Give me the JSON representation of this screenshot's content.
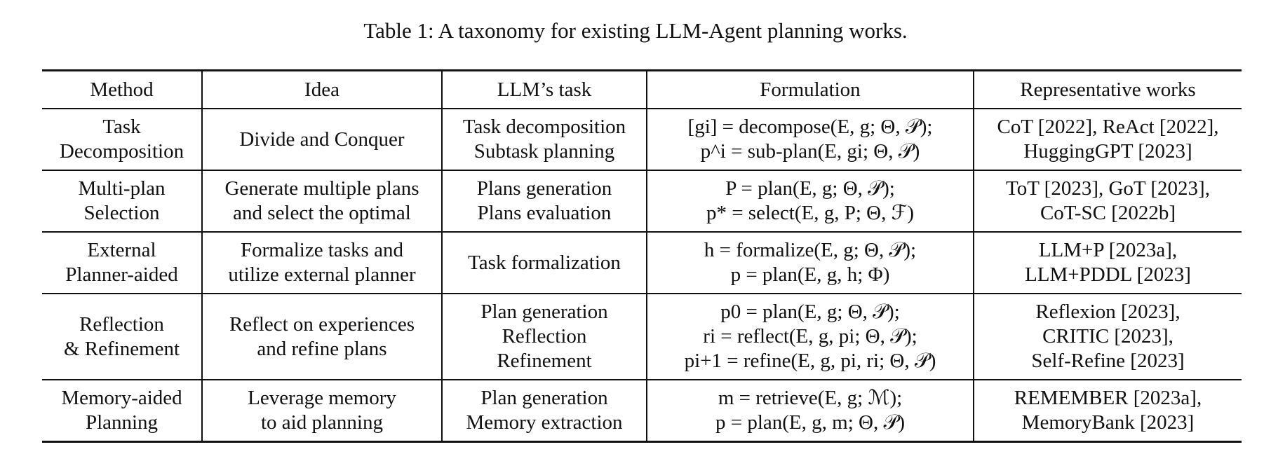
{
  "caption": "Table 1: A taxonomy for existing LLM-Agent planning works.",
  "headers": {
    "method": "Method",
    "idea": "Idea",
    "task": "LLM’s task",
    "formulation": "Formulation",
    "works": "Representative works"
  },
  "rows": [
    {
      "method": [
        "Task",
        "Decomposition"
      ],
      "idea": [
        "Divide and Conquer"
      ],
      "task": [
        "Task decomposition",
        "Subtask planning"
      ],
      "formulation": [
        "[gi] = decompose(E, g; Θ, 𝒫);",
        "p^i = sub-plan(E, gi; Θ, 𝒫)"
      ],
      "works": [
        "CoT [2022], ReAct [2022],",
        "HuggingGPT [2023]"
      ]
    },
    {
      "method": [
        "Multi-plan",
        "Selection"
      ],
      "idea": [
        "Generate multiple plans",
        "and select the optimal"
      ],
      "task": [
        "Plans generation",
        "Plans evaluation"
      ],
      "formulation": [
        "P = plan(E, g; Θ, 𝒫);",
        "p* = select(E, g, P; Θ, ℱ)"
      ],
      "works": [
        "ToT [2023], GoT [2023],",
        "CoT-SC [2022b]"
      ]
    },
    {
      "method": [
        "External",
        "Planner-aided"
      ],
      "idea": [
        "Formalize tasks and",
        "utilize external planner"
      ],
      "task": [
        "Task formalization"
      ],
      "formulation": [
        "h = formalize(E, g; Θ, 𝒫);",
        "p = plan(E, g, h; Φ)"
      ],
      "works": [
        "LLM+P [2023a],",
        "LLM+PDDL [2023]"
      ]
    },
    {
      "method": [
        "Reflection",
        "& Refinement"
      ],
      "idea": [
        "Reflect on experiences",
        "and refine plans"
      ],
      "task": [
        "Plan generation",
        "Reflection",
        "Refinement"
      ],
      "formulation": [
        "p0 = plan(E, g; Θ, 𝒫);",
        "ri = reflect(E, g, pi; Θ, 𝒫);",
        "pi+1 = refine(E, g, pi, ri; Θ, 𝒫)"
      ],
      "works": [
        "Reflexion [2023],",
        "CRITIC [2023],",
        "Self-Refine [2023]"
      ]
    },
    {
      "method": [
        "Memory-aided",
        "Planning"
      ],
      "idea": [
        "Leverage memory",
        "to aid planning"
      ],
      "task": [
        "Plan generation",
        "Memory extraction"
      ],
      "formulation": [
        "m = retrieve(E, g; ℳ);",
        "p = plan(E, g, m; Θ, 𝒫)"
      ],
      "works": [
        "REMEMBER [2023a],",
        "MemoryBank [2023]"
      ]
    }
  ]
}
